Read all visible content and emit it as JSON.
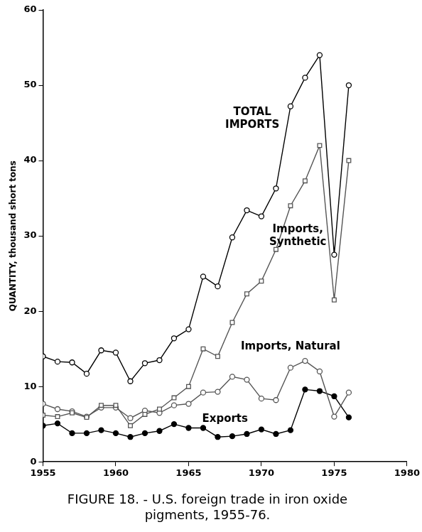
{
  "chart_data": {
    "type": "line",
    "title": "FIGURE 18. - U.S. foreign trade in iron oxide pigments, 1955-76.",
    "y_label": "QUANTITY, thousand short tons",
    "x": [
      1955,
      1956,
      1957,
      1958,
      1959,
      1960,
      1961,
      1962,
      1963,
      1964,
      1965,
      1966,
      1967,
      1968,
      1969,
      1970,
      1971,
      1972,
      1973,
      1974,
      1975,
      1976
    ],
    "series": [
      {
        "name": "TOTAL IMPORTS",
        "color": "#000000",
        "marker": "circle",
        "values": [
          14,
          13.3,
          13.2,
          11.7,
          14.8,
          14.5,
          10.7,
          13.1,
          13.5,
          16.4,
          17.6,
          24.6,
          23.3,
          29.8,
          33.4,
          32.6,
          36.3,
          47.2,
          51,
          54,
          27.5,
          50
        ]
      },
      {
        "name": "Imports, Synthetic",
        "color": "#555555",
        "marker": "square",
        "values": [
          6.2,
          6,
          6.5,
          5.9,
          7.5,
          7.5,
          4.8,
          6.3,
          7,
          8.5,
          10,
          15,
          14,
          18.5,
          22.3,
          24,
          28.2,
          34,
          37.3,
          42,
          21.5,
          40
        ]
      },
      {
        "name": "Imports, Natural",
        "color": "#555555",
        "marker": "circle",
        "values": [
          7.7,
          7,
          6.7,
          6,
          7.2,
          7.2,
          5.8,
          6.8,
          6.5,
          7.5,
          7.7,
          9.2,
          9.3,
          11.3,
          10.9,
          8.4,
          8.2,
          12.5,
          13.4,
          12,
          6,
          9.2
        ]
      },
      {
        "name": "Exports",
        "color": "#000000",
        "marker": "dot",
        "values": [
          4.8,
          5.1,
          3.8,
          3.8,
          4.2,
          3.8,
          3.3,
          3.8,
          4.1,
          5,
          4.5,
          4.5,
          3.3,
          3.4,
          3.7,
          4.3,
          3.7,
          4.2,
          9.6,
          9.4,
          8.7,
          5.9
        ]
      }
    ],
    "xlim": [
      1955,
      1980
    ],
    "xticks": [
      1955,
      1960,
      1965,
      1970,
      1975,
      1980
    ],
    "ylim": [
      0,
      60
    ],
    "yticks": [
      0,
      10,
      20,
      30,
      40,
      50,
      60
    ],
    "grid": false
  }
}
